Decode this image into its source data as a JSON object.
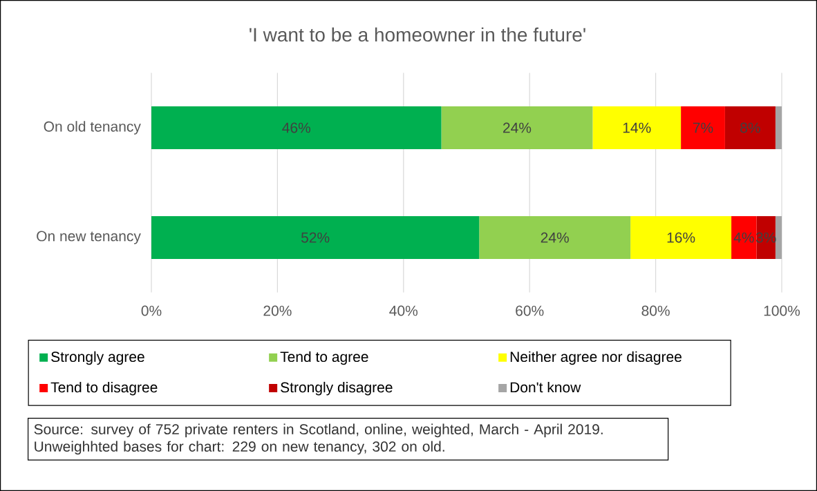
{
  "chart_data": {
    "type": "bar",
    "orientation": "horizontal",
    "stacked": true,
    "title": "'I want to be a homeowner in the future'",
    "categories": [
      "On old tenancy",
      "On new tenancy"
    ],
    "series": [
      {
        "name": "Strongly agree",
        "color": "#00b050",
        "values": [
          46,
          52
        ],
        "value_labels": [
          "46%",
          "52%"
        ]
      },
      {
        "name": "Tend to agree",
        "color": "#92d050",
        "values": [
          24,
          24
        ],
        "value_labels": [
          "24%",
          "24%"
        ]
      },
      {
        "name": "Neither agree nor disagree",
        "color": "#ffff00",
        "values": [
          14,
          16
        ],
        "value_labels": [
          "14%",
          "16%"
        ]
      },
      {
        "name": "Tend to disagree",
        "color": "#ff0000",
        "values": [
          7,
          4
        ],
        "value_labels": [
          "7%",
          "4%"
        ]
      },
      {
        "name": "Strongly disagree",
        "color": "#c00000",
        "values": [
          8,
          3
        ],
        "value_labels": [
          "8%",
          "3%"
        ]
      },
      {
        "name": "Don't know",
        "color": "#a5a5a5",
        "values": [
          1,
          1
        ]
      }
    ],
    "xlim": [
      0,
      100
    ],
    "xticks": [
      {
        "value": 0,
        "label": "0%"
      },
      {
        "value": 20,
        "label": "20%"
      },
      {
        "value": 40,
        "label": "40%"
      },
      {
        "value": 60,
        "label": "60%"
      },
      {
        "value": 80,
        "label": "80%"
      },
      {
        "value": 100,
        "label": "100%"
      }
    ],
    "grid": "x",
    "legend": "bottom",
    "annotations": [
      "Source: survey of 752 private renters in Scotland, online, weighted, March - April 2019. Unweighhted bases for chart: 229 on new tenancy, 302 on old."
    ]
  }
}
